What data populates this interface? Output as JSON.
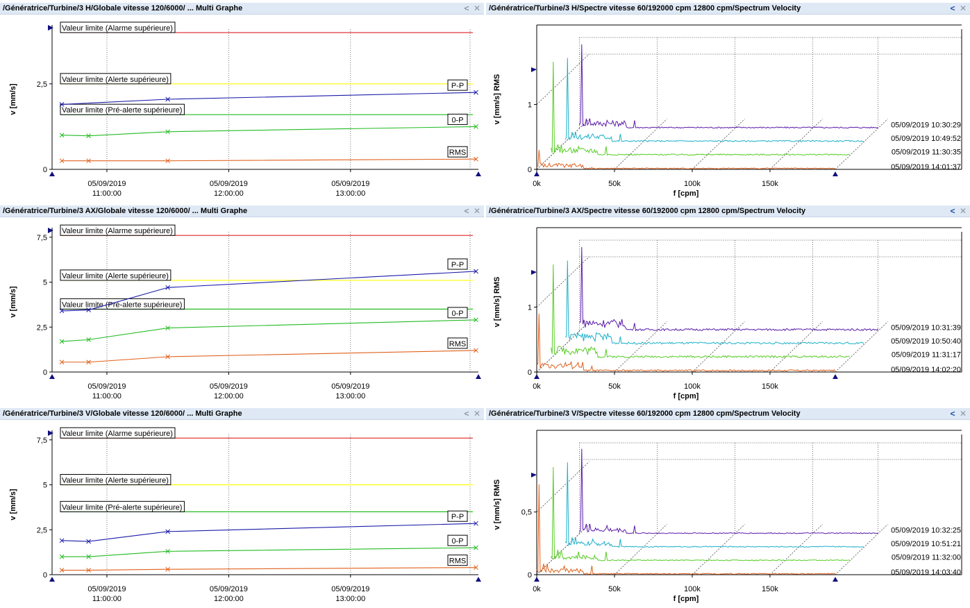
{
  "panels": [
    {
      "id": "trend-h",
      "title": "/Génératrice/Turbine/3 H/Globale vitesse 120/6000/ ... Multi Graphe",
      "buttons": {
        "collapse": "<",
        "close": "✕"
      },
      "chart_data": {
        "type": "line",
        "ylabel": "v [mm/s]",
        "xlabel": "",
        "ylim": [
          0,
          4.1
        ],
        "yticks": [
          {
            "value": 0,
            "label": "0"
          },
          {
            "value": 2.5,
            "label": "2,5"
          }
        ],
        "xlim": [
          10.55,
          14.05
        ],
        "xticks": [
          {
            "value": 11,
            "date": "05/09/2019",
            "time": "11:00:00"
          },
          {
            "value": 12,
            "date": "05/09/2019",
            "time": "12:00:00"
          },
          {
            "value": 13,
            "date": "05/09/2019",
            "time": "13:00:00"
          }
        ],
        "limits": [
          {
            "name": "Valeur limite (Alarme supérieure)",
            "value": 4.0,
            "color": "#e02020"
          },
          {
            "name": "Valeur limite (Alerte supérieure)",
            "value": 2.5,
            "color": "#ffff00"
          },
          {
            "name": "Valeur limite (Pré-alerte supérieure)",
            "value": 1.6,
            "color": "#22bb22"
          }
        ],
        "x": [
          10.63,
          10.85,
          11.5,
          14.03
        ],
        "series": [
          {
            "name": "P-P",
            "color": "#1a1aa8",
            "values": [
              1.9,
              null,
              2.05,
              2.25
            ]
          },
          {
            "name": "0-P",
            "color": "#22bb22",
            "values": [
              1.0,
              0.98,
              1.1,
              1.25
            ]
          },
          {
            "name": "RMS",
            "color": "#e0601a",
            "values": [
              0.25,
              0.25,
              0.25,
              0.3
            ]
          }
        ]
      }
    },
    {
      "id": "spectrum-h",
      "title": "/Génératrice/Turbine/3 H/Spectre vitesse 60/192000 cpm 12800 cpm/Spectrum Velocity",
      "buttons": {
        "collapse": "<",
        "close": "✕"
      },
      "chart_data": {
        "type": "line",
        "ylabel": "v [mm/s] RMS",
        "xlabel": "f [cpm]",
        "yticks": [
          {
            "value": 0,
            "label": "0"
          },
          {
            "value": 1,
            "label": "1"
          }
        ],
        "ymax": 1.45,
        "xlim": [
          0,
          192000
        ],
        "xticks": [
          {
            "value": 0,
            "label": "0k"
          },
          {
            "value": 50000,
            "label": "50k"
          },
          {
            "value": 100000,
            "label": "100k"
          },
          {
            "value": 150000,
            "label": "150k"
          }
        ],
        "series": [
          {
            "name": "05/09/2019 10:30:29",
            "color": "#5a1aa8",
            "peak": 1.3,
            "noise": 0.04
          },
          {
            "name": "05/09/2019 10:49:52",
            "color": "#1ab0c8",
            "peak": 1.3,
            "noise": 0.04
          },
          {
            "name": "05/09/2019 11:30:35",
            "color": "#55cc22",
            "peak": 1.45,
            "noise": 0.04
          },
          {
            "name": "05/09/2019 14:01:37",
            "color": "#e0601a",
            "peak": 0.3,
            "noise": 0.03
          }
        ]
      }
    },
    {
      "id": "trend-ax",
      "title": "/Génératrice/Turbine/3 AX/Globale vitesse 120/6000/ ... Multi Graphe",
      "buttons": {
        "collapse": "<",
        "close": "✕"
      },
      "chart_data": {
        "type": "line",
        "ylabel": "v [mm/s]",
        "xlabel": "",
        "ylim": [
          0,
          7.8
        ],
        "yticks": [
          {
            "value": 0,
            "label": "0"
          },
          {
            "value": 2.5,
            "label": "2,5"
          },
          {
            "value": 5,
            "label": "5"
          },
          {
            "value": 7.5,
            "label": "7,5"
          }
        ],
        "xlim": [
          10.55,
          14.05
        ],
        "xticks": [
          {
            "value": 11,
            "date": "05/09/2019",
            "time": "11:00:00"
          },
          {
            "value": 12,
            "date": "05/09/2019",
            "time": "12:00:00"
          },
          {
            "value": 13,
            "date": "05/09/2019",
            "time": "13:00:00"
          }
        ],
        "limits": [
          {
            "name": "Valeur limite (Alarme supérieure)",
            "value": 7.6,
            "color": "#e02020"
          },
          {
            "name": "Valeur limite (Alerte supérieure)",
            "value": 5.1,
            "color": "#ffff00"
          },
          {
            "name": "Valeur limite (Pré-alerte supérieure)",
            "value": 3.5,
            "color": "#22bb22"
          }
        ],
        "x": [
          10.63,
          10.85,
          11.5,
          14.03
        ],
        "series": [
          {
            "name": "P-P",
            "color": "#1a1aa8",
            "values": [
              3.4,
              3.45,
              4.7,
              5.6
            ]
          },
          {
            "name": "0-P",
            "color": "#22bb22",
            "values": [
              1.7,
              1.8,
              2.45,
              2.9
            ]
          },
          {
            "name": "RMS",
            "color": "#e0601a",
            "values": [
              0.55,
              0.55,
              0.85,
              1.2
            ]
          }
        ]
      }
    },
    {
      "id": "spectrum-ax",
      "title": "/Génératrice/Turbine/3 AX/Spectre vitesse 60/192000 cpm 12800 cpm/Spectrum Velocity",
      "buttons": {
        "collapse": "<",
        "close": "✕"
      },
      "chart_data": {
        "type": "line",
        "ylabel": "v [mm/s] RMS",
        "xlabel": "f [cpm]",
        "yticks": [
          {
            "value": 0,
            "label": "0"
          },
          {
            "value": 1,
            "label": "1"
          }
        ],
        "ymax": 1.45,
        "xlim": [
          0,
          192000
        ],
        "xticks": [
          {
            "value": 0,
            "label": "0k"
          },
          {
            "value": 50000,
            "label": "50k"
          },
          {
            "value": 100000,
            "label": "100k"
          },
          {
            "value": 150000,
            "label": "150k"
          }
        ],
        "series": [
          {
            "name": "05/09/2019 10:31:39",
            "color": "#5a1aa8",
            "peak": 1.3,
            "noise": 0.06
          },
          {
            "name": "05/09/2019 10:50:40",
            "color": "#1ab0c8",
            "peak": 1.3,
            "noise": 0.06
          },
          {
            "name": "05/09/2019 11:31:17",
            "color": "#55cc22",
            "peak": 1.45,
            "noise": 0.06
          },
          {
            "name": "05/09/2019 14:02:20",
            "color": "#e0601a",
            "peak": 0.9,
            "noise": 0.05
          }
        ]
      }
    },
    {
      "id": "trend-v",
      "title": "/Génératrice/Turbine/3 V/Globale vitesse 120/6000/ ... Multi Graphe",
      "buttons": {
        "collapse": "<",
        "close": "✕"
      },
      "chart_data": {
        "type": "line",
        "ylabel": "v [mm/s]",
        "xlabel": "",
        "ylim": [
          0,
          7.8
        ],
        "yticks": [
          {
            "value": 0,
            "label": "0"
          },
          {
            "value": 2.5,
            "label": "2,5"
          },
          {
            "value": 5,
            "label": "5"
          },
          {
            "value": 7.5,
            "label": "7,5"
          }
        ],
        "xlim": [
          10.55,
          14.05
        ],
        "xticks": [
          {
            "value": 11,
            "date": "05/09/2019",
            "time": "11:00:00"
          },
          {
            "value": 12,
            "date": "05/09/2019",
            "time": "12:00:00"
          },
          {
            "value": 13,
            "date": "05/09/2019",
            "time": "13:00:00"
          }
        ],
        "limits": [
          {
            "name": "Valeur limite (Alarme supérieure)",
            "value": 7.6,
            "color": "#e02020"
          },
          {
            "name": "Valeur limite (Alerte supérieure)",
            "value": 5.0,
            "color": "#ffff00"
          },
          {
            "name": "Valeur limite (Pré-alerte supérieure)",
            "value": 3.5,
            "color": "#22bb22"
          }
        ],
        "x": [
          10.63,
          10.85,
          11.5,
          14.03
        ],
        "series": [
          {
            "name": "P-P",
            "color": "#1a1aa8",
            "values": [
              1.9,
              1.85,
              2.4,
              2.85
            ]
          },
          {
            "name": "0-P",
            "color": "#22bb22",
            "values": [
              1.0,
              1.0,
              1.3,
              1.5
            ]
          },
          {
            "name": "RMS",
            "color": "#e0601a",
            "values": [
              0.25,
              0.25,
              0.3,
              0.4
            ]
          }
        ]
      }
    },
    {
      "id": "spectrum-v",
      "title": "/Génératrice/Turbine/3 V/Spectre vitesse 60/192000 cpm 12800 cpm/Spectrum Velocity",
      "buttons": {
        "collapse": "<",
        "close": "✕"
      },
      "chart_data": {
        "type": "line",
        "ylabel": "v [mm/s] RMS",
        "xlabel": "f [cpm]",
        "yticks": [
          {
            "value": 0,
            "label": "0"
          },
          {
            "value": 0.5,
            "label": "0,5"
          }
        ],
        "ymax": 0.75,
        "xlim": [
          0,
          192000
        ],
        "xticks": [
          {
            "value": 0,
            "label": "0k"
          },
          {
            "value": 50000,
            "label": "50k"
          },
          {
            "value": 100000,
            "label": "100k"
          },
          {
            "value": 150000,
            "label": "150k"
          }
        ],
        "series": [
          {
            "name": "05/09/2019 10:32:25",
            "color": "#5a1aa8",
            "peak": 0.68,
            "noise": 0.03
          },
          {
            "name": "05/09/2019 10:51:21",
            "color": "#1ab0c8",
            "peak": 0.68,
            "noise": 0.03
          },
          {
            "name": "05/09/2019 11:32:00",
            "color": "#55cc22",
            "peak": 0.75,
            "noise": 0.03
          },
          {
            "name": "05/09/2019 14:03:40",
            "color": "#e0601a",
            "peak": 0.72,
            "noise": 0.03
          }
        ]
      }
    }
  ]
}
